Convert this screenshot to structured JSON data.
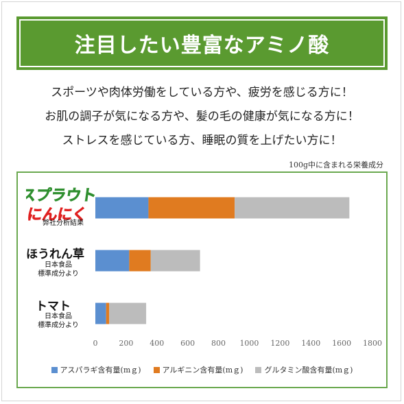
{
  "banner": {
    "title": "注目したい豊富なアミノ酸"
  },
  "intro": {
    "lines": [
      "スポーツや肉体労働をしている方や、疲労を感じる方に！",
      "お肌の調子が気になる方や、髪の毛の健康が気になる方に！",
      "ストレスを感じている方、睡眠の質を上げたい方に！"
    ]
  },
  "note": "100g中に含まれる栄養成分",
  "logo": {
    "line1": "スプラウト",
    "line2": "にんにく",
    "colors": {
      "line1": "#2f8f2f",
      "line2": "#e02020"
    }
  },
  "categories": [
    {
      "name": "",
      "sub": [
        "弊社分析結果"
      ]
    },
    {
      "name": "ほうれん草",
      "sub": [
        "日本食品",
        "標準成分より"
      ]
    },
    {
      "name": "トマト",
      "sub": [
        "日本食品",
        "標準成分より"
      ]
    }
  ],
  "chart_data": {
    "type": "bar",
    "orientation": "horizontal",
    "stacked": true,
    "categories": [
      "スプラウトにんにく",
      "ほうれん草",
      "トマト"
    ],
    "series": [
      {
        "name": "アスパラギ含有量(mｇ)",
        "color": "#5b8fd0",
        "values": [
          345,
          220,
          70
        ]
      },
      {
        "name": "アルギニン含有量(mｇ)",
        "color": "#e07b20",
        "values": [
          560,
          140,
          20
        ]
      },
      {
        "name": "グルタミン酸含有量(mｇ)",
        "color": "#bcbcbc",
        "values": [
          745,
          320,
          240
        ]
      }
    ],
    "xlim": [
      0,
      1800
    ],
    "xticks": [
      0,
      200,
      400,
      600,
      800,
      1000,
      1200,
      1400,
      1600,
      1800
    ],
    "grid": false,
    "legend": "bottom"
  }
}
